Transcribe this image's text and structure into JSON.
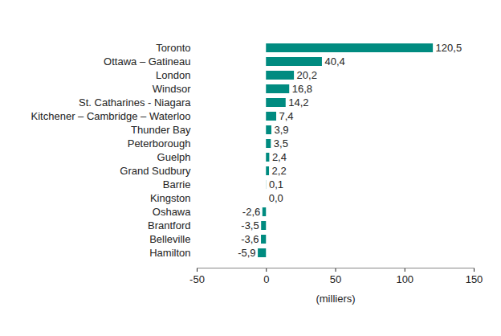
{
  "chart_data": {
    "type": "bar",
    "orientation": "horizontal",
    "categories": [
      "Toronto",
      "Ottawa – Gatineau",
      "London",
      "Windsor",
      "St. Catharines - Niagara",
      "Kitchener – Cambridge – Waterloo",
      "Thunder Bay",
      "Peterborough",
      "Guelph",
      "Grand Sudbury",
      "Barrie",
      "Kingston",
      "Oshawa",
      "Brantford",
      "Belleville",
      "Hamilton"
    ],
    "values": [
      120.5,
      40.4,
      20.2,
      16.8,
      14.2,
      7.4,
      3.9,
      3.5,
      2.4,
      2.2,
      0.1,
      0.0,
      -2.6,
      -3.5,
      -3.6,
      -5.9
    ],
    "value_labels": [
      "120,5",
      "40,4",
      "20,2",
      "16,8",
      "14,2",
      "7,4",
      "3,9",
      "3,5",
      "2,4",
      "2,2",
      "0,1",
      "0,0",
      "-2,6",
      "-3,5",
      "-3,6",
      "-5,9"
    ],
    "data_labels": true,
    "color": "#008b80",
    "xlabel": "(milliers)",
    "xlim": [
      -50,
      150
    ],
    "xticks": [
      -50,
      0,
      50,
      100,
      150
    ],
    "grid": false
  }
}
